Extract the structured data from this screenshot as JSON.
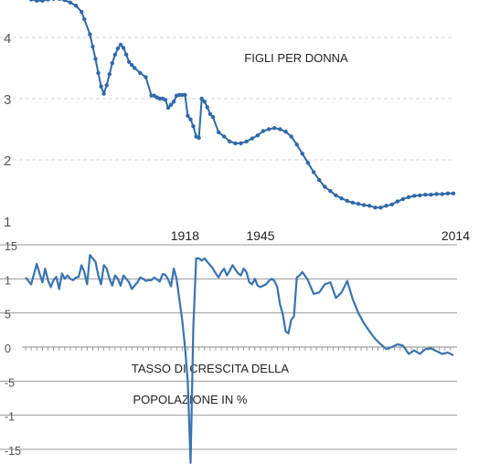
{
  "chart_data": [
    {
      "type": "line",
      "title": "FIGLI PER DONNA",
      "ylim": [
        1,
        4.7
      ],
      "yticks": [
        "1",
        "2",
        "3",
        "4"
      ],
      "xlim": [
        1861,
        2014
      ],
      "grid": "dashed-horizontal",
      "color": "#2f69a8",
      "markers": true,
      "x": [
        1861,
        1863,
        1865,
        1867,
        1869,
        1871,
        1873,
        1875,
        1877,
        1879,
        1881,
        1882,
        1884,
        1885,
        1886,
        1887,
        1888,
        1889,
        1890,
        1891,
        1892,
        1893,
        1894,
        1895,
        1896,
        1897,
        1898,
        1899,
        1900,
        1902,
        1904,
        1906,
        1907,
        1908,
        1909,
        1910,
        1911,
        1912,
        1913,
        1914,
        1915,
        1916,
        1917,
        1918,
        1919,
        1920,
        1921,
        1922,
        1923,
        1924,
        1925,
        1926,
        1927,
        1928,
        1930,
        1932,
        1934,
        1936,
        1938,
        1940,
        1942,
        1944,
        1946,
        1948,
        1950,
        1952,
        1954,
        1956,
        1958,
        1960,
        1962,
        1964,
        1966,
        1968,
        1970,
        1972,
        1974,
        1976,
        1978,
        1980,
        1982,
        1984,
        1986,
        1988,
        1990,
        1992,
        1994,
        1996,
        1998,
        2000,
        2002,
        2004,
        2006,
        2008,
        2010,
        2012,
        2014
      ],
      "y": [
        4.67,
        4.62,
        4.6,
        4.6,
        4.62,
        4.63,
        4.63,
        4.61,
        4.57,
        4.52,
        4.42,
        4.3,
        4.05,
        3.85,
        3.65,
        3.42,
        3.2,
        3.08,
        3.22,
        3.4,
        3.58,
        3.72,
        3.82,
        3.88,
        3.83,
        3.72,
        3.6,
        3.55,
        3.5,
        3.42,
        3.35,
        3.05,
        3.05,
        3.02,
        3.0,
        3.0,
        2.98,
        2.85,
        2.9,
        2.95,
        3.05,
        3.06,
        3.06,
        3.06,
        2.72,
        2.66,
        2.55,
        2.38,
        2.36,
        3.0,
        2.95,
        2.86,
        2.75,
        2.7,
        2.45,
        2.38,
        2.3,
        2.27,
        2.27,
        2.3,
        2.35,
        2.4,
        2.47,
        2.5,
        2.52,
        2.5,
        2.46,
        2.38,
        2.25,
        2.1,
        1.95,
        1.8,
        1.67,
        1.56,
        1.49,
        1.42,
        1.37,
        1.33,
        1.3,
        1.28,
        1.26,
        1.25,
        1.22,
        1.22,
        1.25,
        1.27,
        1.32,
        1.36,
        1.39,
        1.41,
        1.42,
        1.43,
        1.43,
        1.44,
        1.44,
        1.45,
        1.45
      ]
    },
    {
      "type": "line",
      "title": "TASSO DI CRESCITA DELLA POPOLAZIONE IN %",
      "title_lines": [
        "TASSO DI CRESCITA DELLA",
        "POPOLAZIONE IN %"
      ],
      "ylim": [
        -1.7,
        1.5
      ],
      "yticks": [
        "15",
        "1",
        "5",
        "0",
        "-5",
        "-1",
        "-15"
      ],
      "ytick_values": [
        1.5,
        1.0,
        0.5,
        0.0,
        -0.5,
        -1.0,
        -1.5
      ],
      "xlim": [
        1861,
        2014
      ],
      "xticks": [
        "1918",
        "1945",
        "2014"
      ],
      "xtick_values": [
        1918,
        1945,
        2014
      ],
      "grid": "solid-horizontal",
      "color": "#3a73b0",
      "markers": false,
      "x": [
        1861,
        1863,
        1865,
        1866,
        1867,
        1868,
        1869,
        1870,
        1871,
        1872,
        1873,
        1874,
        1875,
        1876,
        1877,
        1878,
        1879,
        1880,
        1881,
        1882,
        1883,
        1884,
        1885,
        1886,
        1887,
        1888,
        1889,
        1890,
        1891,
        1892,
        1893,
        1894,
        1895,
        1896,
        1897,
        1898,
        1899,
        1900,
        1901,
        1902,
        1903,
        1904,
        1905,
        1906,
        1907,
        1908,
        1909,
        1910,
        1911,
        1912,
        1913,
        1914,
        1915,
        1916,
        1917,
        1918,
        1919,
        1920,
        1921,
        1922,
        1923,
        1924,
        1925,
        1926,
        1927,
        1928,
        1929,
        1930,
        1931,
        1932,
        1933,
        1934,
        1935,
        1936,
        1937,
        1938,
        1939,
        1940,
        1941,
        1942,
        1943,
        1944,
        1945,
        1946,
        1947,
        1948,
        1949,
        1950,
        1951,
        1952,
        1953,
        1954,
        1955,
        1956,
        1957,
        1958,
        1959,
        1960,
        1962,
        1964,
        1966,
        1968,
        1970,
        1972,
        1974,
        1976,
        1978,
        1980,
        1982,
        1984,
        1986,
        1988,
        1990,
        1992,
        1994,
        1996,
        1998,
        2000,
        2002,
        2004,
        2006,
        2008,
        2010,
        2012,
        2014
      ],
      "y": [
        1.02,
        0.92,
        1.22,
        1.08,
        0.95,
        1.15,
        0.98,
        0.88,
        0.98,
        1.03,
        0.85,
        1.08,
        1.0,
        1.05,
        1.0,
        0.98,
        1.02,
        1.03,
        1.2,
        1.1,
        0.92,
        1.35,
        1.3,
        1.25,
        1.05,
        0.92,
        1.2,
        1.15,
        1.0,
        0.9,
        1.05,
        1.0,
        0.9,
        1.05,
        1.0,
        0.95,
        0.85,
        0.9,
        0.95,
        1.02,
        1.0,
        0.97,
        0.98,
        0.98,
        1.02,
        0.99,
        0.96,
        1.07,
        1.06,
        0.99,
        0.89,
        1.15,
        1.0,
        0.7,
        0.4,
        0.0,
        -0.5,
        -1.7,
        0.3,
        1.3,
        1.3,
        1.27,
        1.3,
        1.25,
        1.2,
        1.15,
        1.08,
        1.02,
        1.1,
        1.15,
        1.05,
        1.12,
        1.2,
        1.14,
        1.08,
        1.05,
        1.15,
        1.1,
        0.95,
        0.92,
        1.0,
        0.9,
        0.88,
        0.9,
        0.92,
        0.97,
        1.0,
        0.97,
        0.88,
        0.62,
        0.48,
        0.23,
        0.2,
        0.4,
        0.45,
        1.02,
        1.05,
        1.1,
        0.98,
        0.78,
        0.8,
        0.92,
        0.95,
        0.72,
        0.8,
        0.97,
        0.7,
        0.5,
        0.35,
        0.23,
        0.12,
        0.04,
        -0.03,
        0.0,
        0.04,
        0.02,
        -0.1,
        -0.05,
        -0.1,
        -0.03,
        -0.02,
        -0.06,
        -0.1,
        -0.08,
        -0.12
      ]
    }
  ]
}
